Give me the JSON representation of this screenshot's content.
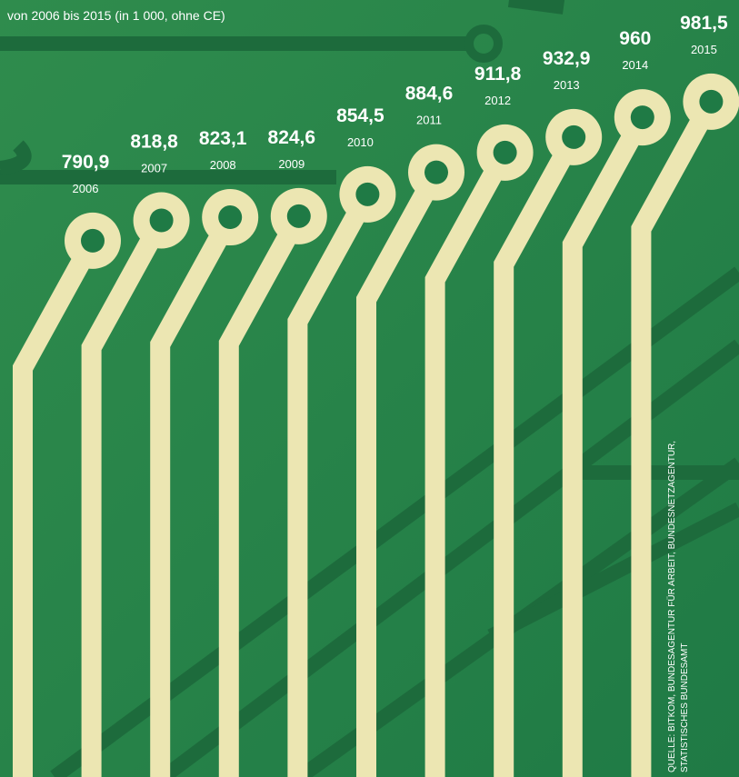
{
  "chart_data": {
    "type": "circuit-bar",
    "subtitle": "von 2006 bis 2015 (in 1 000, ohne CE)",
    "categories": [
      "2006",
      "2007",
      "2008",
      "2009",
      "2010",
      "2011",
      "2012",
      "2013",
      "2014",
      "2015"
    ],
    "values": [
      790.9,
      818.8,
      823.1,
      824.6,
      854.5,
      884.6,
      911.8,
      932.9,
      960,
      981.5
    ],
    "value_labels": [
      "790,9",
      "818,8",
      "823,1",
      "824,6",
      "854,5",
      "884,6",
      "911,8",
      "932,9",
      "960",
      "981,5"
    ],
    "color": "#ece6b2",
    "source": [
      "QUELLE: BITKOM, BUNDESAGENTUR FÜR ARBEIT, BUNDESNETZAGENTUR,",
      "STATISTISCHES BUNDESAMT"
    ]
  }
}
